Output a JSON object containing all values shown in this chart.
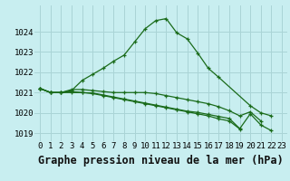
{
  "title": "Graphe pression niveau de la mer (hPa)",
  "bg_color": "#c8eef0",
  "grid_color": "#aad4d6",
  "line_color": "#1a6b1a",
  "marker": "+",
  "x_ticks": [
    0,
    1,
    2,
    3,
    4,
    5,
    6,
    7,
    8,
    9,
    10,
    11,
    12,
    13,
    14,
    15,
    16,
    17,
    18,
    19,
    20,
    21,
    22,
    23
  ],
  "ylim": [
    1018.6,
    1025.3
  ],
  "yticks": [
    1019,
    1020,
    1021,
    1022,
    1023,
    1024
  ],
  "series": [
    [
      1021.2,
      1021.0,
      1021.0,
      1021.1,
      1021.6,
      1021.9,
      1022.2,
      1022.55,
      1022.85,
      1023.5,
      1024.15,
      1024.55,
      1024.65,
      1023.95,
      1023.65,
      1022.95,
      1022.2,
      1021.75,
      null,
      null,
      1020.35,
      1020.0,
      1019.85,
      null
    ],
    [
      1021.2,
      1021.0,
      1021.0,
      1021.15,
      1021.15,
      1021.1,
      1021.05,
      1021.0,
      1021.0,
      1021.0,
      1021.0,
      1020.95,
      1020.85,
      1020.75,
      1020.65,
      1020.55,
      1020.45,
      1020.3,
      1020.1,
      1019.85,
      1020.05,
      1019.6,
      null,
      null
    ],
    [
      1021.2,
      1021.0,
      1021.0,
      1021.05,
      1021.0,
      1020.95,
      1020.85,
      1020.75,
      1020.65,
      1020.55,
      1020.45,
      1020.35,
      1020.25,
      1020.15,
      1020.05,
      1019.95,
      1019.85,
      1019.7,
      1019.6,
      1019.2,
      null,
      null,
      null,
      null
    ],
    [
      1021.2,
      1021.0,
      1021.0,
      1021.0,
      1021.0,
      1020.98,
      1020.88,
      1020.78,
      1020.68,
      1020.58,
      1020.48,
      1020.38,
      1020.28,
      1020.18,
      1020.08,
      1020.02,
      1019.92,
      1019.82,
      1019.72,
      1019.22,
      1019.95,
      1019.4,
      1019.12,
      null
    ]
  ],
  "title_fontsize": 8.5,
  "tick_fontsize": 6.5,
  "figwidth": 3.2,
  "figheight": 2.0,
  "dpi": 100
}
